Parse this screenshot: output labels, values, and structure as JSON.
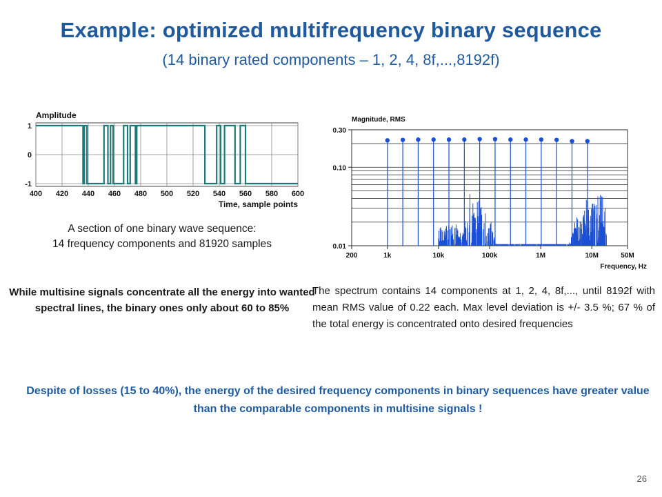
{
  "slide": {
    "title": "Example: optimized multifrequency binary sequence",
    "subtitle": "(14 binary rated components – 1, 2, 4, 8f,...,8192f)",
    "wave_caption_line1": "A section of one binary wave sequence:",
    "wave_caption_line2": "14 frequency components and 81920 samples",
    "multisine_note": "While multisine signals concentrate all the energy into wanted spectral lines, the binary ones only about 60 to 85%",
    "spectrum_note": "The spectrum contains 14 components at 1, 2, 4, 8f,..., until 8192f with mean RMS value of 0.22 each. Max level deviation is +/- 3.5 %; 67 % of the total energy is concentrated onto desired frequencies",
    "conclusion": "Despite of losses (15 to 40%), the energy of the desired frequency components in binary sequences have greater value than the comparable components in multisine signals !",
    "page_number": "26"
  },
  "chart_data": [
    {
      "type": "line",
      "ylabel": "Amplitude",
      "xlabel": "Time, sample points",
      "xlim": [
        400,
        600
      ],
      "ylim": [
        -1,
        1
      ],
      "x_ticks": [
        "400",
        "420",
        "440",
        "460",
        "480",
        "500",
        "520",
        "540",
        "560",
        "580",
        "600"
      ],
      "y_ticks": [
        "1",
        "0",
        "-1"
      ],
      "line_color": "#1b7a78",
      "series": [
        {
          "x": [
            400,
            436,
            436,
            437,
            437,
            439,
            439,
            452,
            452,
            455,
            455,
            457,
            457,
            459,
            459,
            467,
            467,
            470,
            470,
            472,
            472,
            476,
            476,
            477,
            477,
            482,
            482,
            529,
            529,
            538,
            538,
            541,
            541,
            544,
            544,
            552,
            552,
            556,
            556,
            560,
            560,
            600
          ],
          "y": [
            1,
            1,
            -1,
            -1,
            1,
            1,
            -1,
            -1,
            1,
            1,
            -1,
            -1,
            1,
            1,
            -1,
            -1,
            1,
            1,
            -1,
            -1,
            1,
            1,
            -1,
            -1,
            1,
            1,
            1,
            1,
            -1,
            -1,
            1,
            1,
            -1,
            -1,
            1,
            1,
            -1,
            -1,
            1,
            1,
            -1,
            -1
          ]
        }
      ]
    },
    {
      "type": "scatter",
      "ylabel": "Magnitude, RMS",
      "xlabel": "Frequency, Hz",
      "x_scale": "log",
      "y_scale": "log",
      "xlim": [
        200,
        50000000
      ],
      "ylim": [
        0.01,
        0.3
      ],
      "x_ticks": [
        {
          "value": 200,
          "label": "200"
        },
        {
          "value": 1000,
          "label": "1k"
        },
        {
          "value": 10000,
          "label": "10k"
        },
        {
          "value": 100000,
          "label": "100k"
        },
        {
          "value": 1000000,
          "label": "1M"
        },
        {
          "value": 10000000,
          "label": "10M"
        },
        {
          "value": 50000000,
          "label": "50M"
        }
      ],
      "y_ticks": [
        {
          "value": 0.3,
          "label": "0.30"
        },
        {
          "value": 0.1,
          "label": "0.10"
        },
        {
          "value": 0.01,
          "label": "0.01"
        }
      ],
      "color": "#1b4fd6",
      "series": [
        {
          "x": [
            1000,
            2000,
            4000,
            8000,
            16000,
            32000,
            64000,
            128000,
            256000,
            512000,
            1024000,
            2048000,
            4096000,
            8192000
          ],
          "y": [
            0.22,
            0.223,
            0.225,
            0.225,
            0.225,
            0.225,
            0.228,
            0.228,
            0.225,
            0.225,
            0.225,
            0.223,
            0.215,
            0.215
          ]
        }
      ]
    }
  ]
}
